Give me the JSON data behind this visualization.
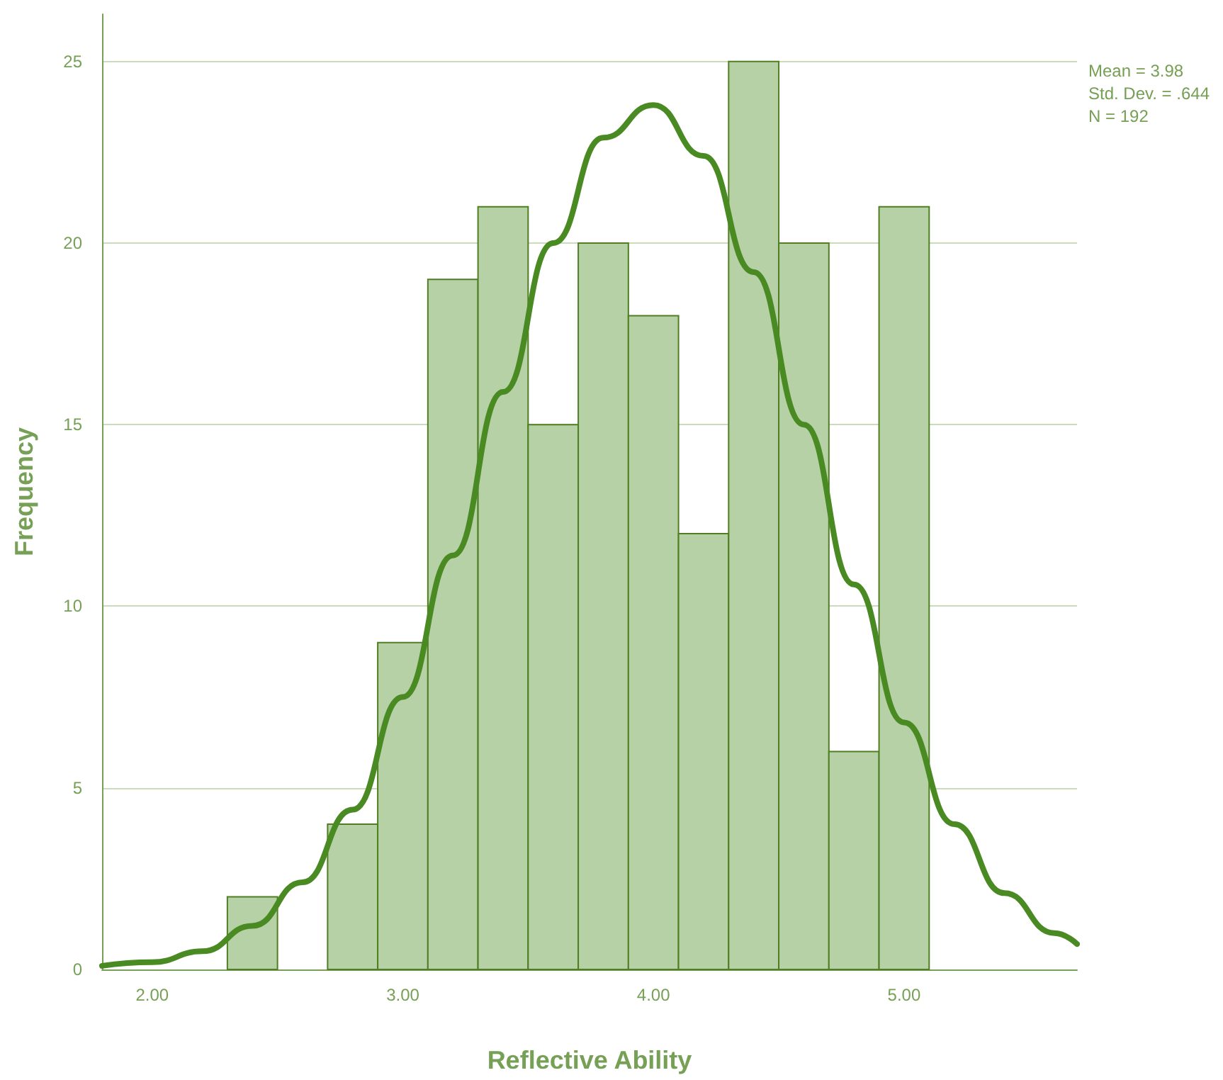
{
  "chart_data": {
    "type": "histogram",
    "xlabel": "Reflective Ability",
    "ylabel": "Frequency",
    "bins": [
      2.3,
      2.5,
      2.7,
      2.9,
      3.1,
      3.3,
      3.5,
      3.7,
      3.9,
      4.1,
      4.3,
      4.5,
      4.7,
      4.9,
      5.1
    ],
    "values": [
      2,
      0,
      4,
      9,
      19,
      21,
      15,
      20,
      18,
      12,
      25,
      20,
      6,
      21
    ],
    "color": "#b7d1a6",
    "series": [
      {
        "type": "line",
        "color": "#4a8a22",
        "x": [
          1.8,
          2.0,
          2.2,
          2.4,
          2.6,
          2.8,
          3.0,
          3.2,
          3.4,
          3.6,
          3.8,
          4.0,
          4.2,
          4.4,
          4.6,
          4.8,
          5.0,
          5.2,
          5.4,
          5.6,
          5.69
        ],
        "values": [
          0.1,
          0.2,
          0.5,
          1.2,
          2.4,
          4.4,
          7.5,
          11.4,
          15.9,
          20.0,
          22.9,
          23.8,
          22.4,
          19.2,
          15.0,
          10.6,
          6.8,
          4.0,
          2.1,
          1.0,
          0.7
        ]
      }
    ],
    "xlim": [
      1.8,
      5.69
    ],
    "xticks": [
      {
        "value": 2,
        "label": "2.00"
      },
      {
        "value": 3,
        "label": "3.00"
      },
      {
        "value": 4,
        "label": "4.00"
      },
      {
        "value": 5,
        "label": "5.00"
      }
    ],
    "ylim": [
      0,
      26.3
    ],
    "yticks": [
      0,
      5,
      10,
      15,
      20,
      25
    ],
    "grid": "y",
    "annotations": [
      "Mean = 3.98",
      "Std. Dev. = .644",
      "N = 192"
    ]
  }
}
